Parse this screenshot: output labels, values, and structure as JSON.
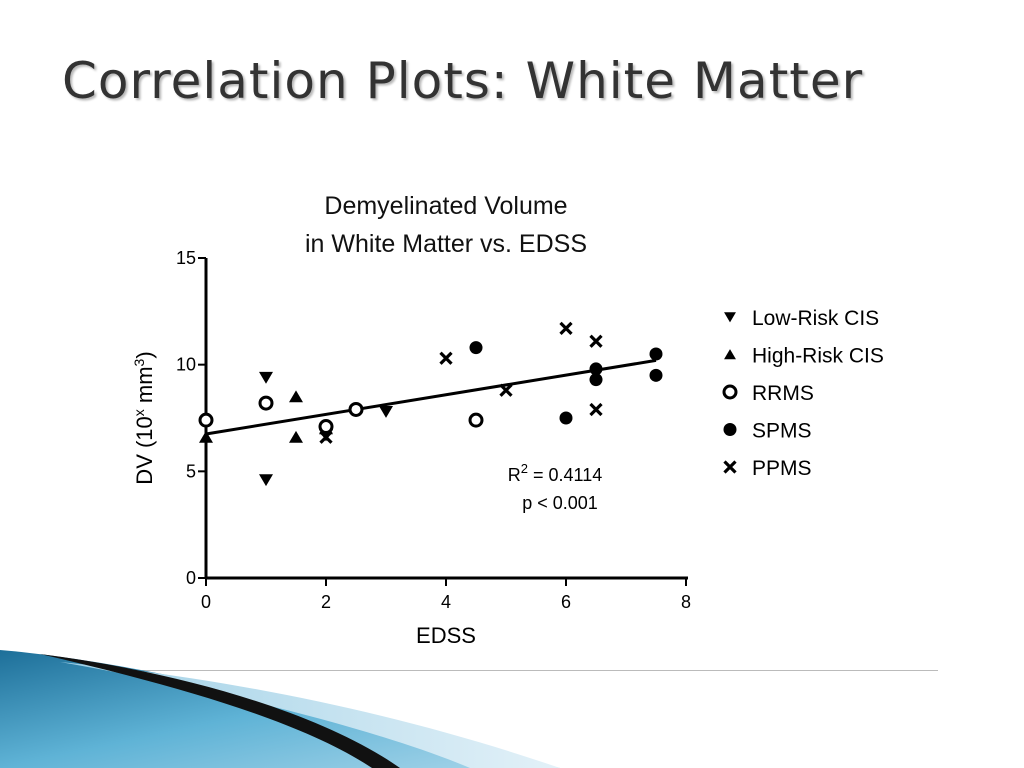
{
  "slide": {
    "title": "Correlation Plots: White Matter"
  },
  "colors": {
    "title": "#333333",
    "marks": "#000000",
    "swoosh_blue": "#3a8fb7",
    "swoosh_dark": "#111111"
  },
  "chart_data": {
    "type": "scatter",
    "title_lines": [
      "Demyelinated Volume",
      "in White Matter vs. EDSS"
    ],
    "xlabel": "EDSS",
    "ylabel_main": "DV (10",
    "ylabel_sup1": "x",
    "ylabel_mid": " mm",
    "ylabel_sup2": "3",
    "ylabel_end": ")",
    "xlim": [
      0,
      8
    ],
    "ylim": [
      0,
      15
    ],
    "x_ticks": [
      0,
      2,
      4,
      6,
      8
    ],
    "y_ticks": [
      0,
      5,
      10,
      15
    ],
    "grid": false,
    "legend_position": "right",
    "series": [
      {
        "name": "Low-Risk CIS",
        "marker": "triangle-down",
        "points": [
          [
            1,
            9.4
          ],
          [
            1,
            4.6
          ],
          [
            2,
            6.7
          ],
          [
            3,
            7.8
          ]
        ]
      },
      {
        "name": "High-Risk CIS",
        "marker": "triangle-up",
        "points": [
          [
            0,
            6.6
          ],
          [
            1.5,
            8.5
          ],
          [
            1.5,
            6.6
          ],
          [
            2,
            7.0
          ]
        ]
      },
      {
        "name": "RRMS",
        "marker": "circle-open",
        "points": [
          [
            0,
            7.4
          ],
          [
            1,
            8.2
          ],
          [
            2,
            7.1
          ],
          [
            2.5,
            7.9
          ],
          [
            4.5,
            7.4
          ]
        ]
      },
      {
        "name": "SPMS",
        "marker": "circle-filled",
        "points": [
          [
            4.5,
            10.8
          ],
          [
            6,
            7.5
          ],
          [
            6.5,
            9.8
          ],
          [
            6.5,
            9.3
          ],
          [
            7.5,
            10.5
          ],
          [
            7.5,
            9.5
          ]
        ]
      },
      {
        "name": "PPMS",
        "marker": "x",
        "points": [
          [
            2,
            6.6
          ],
          [
            4,
            10.3
          ],
          [
            5,
            8.8
          ],
          [
            6,
            11.7
          ],
          [
            6.5,
            11.1
          ],
          [
            6.5,
            7.9
          ]
        ]
      }
    ],
    "regression_line": {
      "x": [
        0,
        7.5
      ],
      "y": [
        6.75,
        10.2
      ]
    },
    "annotation": {
      "r2_prefix": "R",
      "r2_sup": "2",
      "r2_value": " = 0.4114",
      "p_text": "p < 0.001"
    }
  }
}
